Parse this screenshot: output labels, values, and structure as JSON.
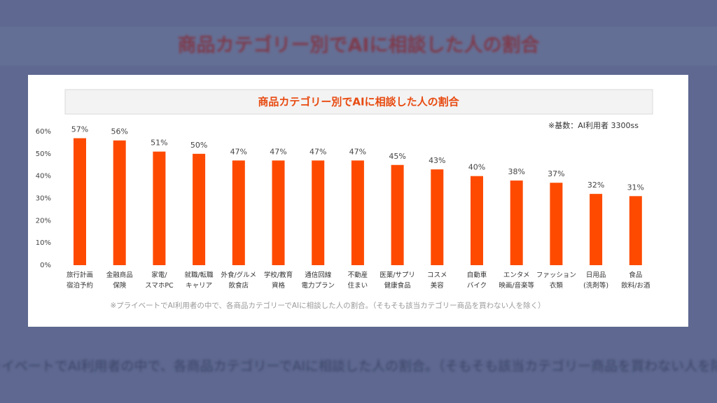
{
  "chart_data": {
    "type": "bar",
    "title": "商品カテゴリー別でAIに相談した人の割合",
    "subtitle": "※基数：AI利用者 3300ss",
    "note": "※プライベートでAI利用者の中で、各商品カテゴリーでAIに相談した人の割合。（そもそも該当カテゴリー商品を買わない人を除く）",
    "categories": [
      "旅行計画\n宿泊予約",
      "金融商品\n保険",
      "家電/\nスマホPC",
      "就職/転職\nキャリア",
      "外食/グルメ\n飲食店",
      "学校/教育\n資格",
      "通信回線\n電力プラン",
      "不動産\n住まい",
      "医薬/サプリ\n健康食品",
      "コスメ\n美容",
      "自動車\nバイク",
      "エンタメ\n映画/音楽等",
      "ファッション\n衣類",
      "日用品\n(洗剤等)",
      "食品\n飲料/お酒"
    ],
    "values": [
      57,
      56,
      51,
      50,
      47,
      47,
      47,
      47,
      45,
      43,
      40,
      38,
      37,
      32,
      31
    ],
    "value_labels": [
      "57%",
      "56%",
      "51%",
      "50%",
      "47%",
      "47%",
      "47%",
      "47%",
      "45%",
      "43%",
      "40%",
      "38%",
      "37%",
      "32%",
      "31%"
    ],
    "color": "#fe4a00",
    "ylim": [
      0,
      60
    ],
    "yticks": [
      {
        "value": 0,
        "label": "0%"
      },
      {
        "value": 10,
        "label": "10%"
      },
      {
        "value": 20,
        "label": "20%"
      },
      {
        "value": 30,
        "label": "30%"
      },
      {
        "value": 40,
        "label": "40%"
      },
      {
        "value": 50,
        "label": "50%"
      },
      {
        "value": 60,
        "label": "60%"
      }
    ],
    "grid": false
  }
}
